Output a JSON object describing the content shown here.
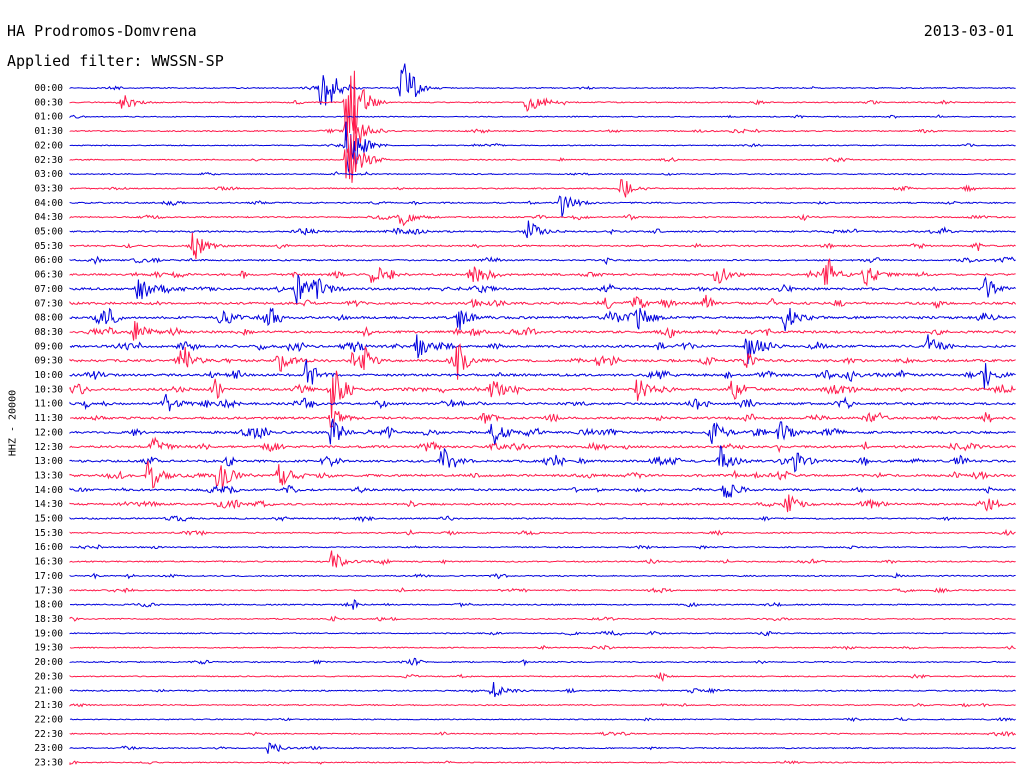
{
  "header": {
    "station": "HA Prodromos-Domvrena",
    "filter": "Applied filter: WWSSN-SP",
    "date": "2013-03-01"
  },
  "side_label": "HHZ - 20000",
  "colors": {
    "even_row": "#0000dd",
    "odd_row": "#ff1a4b"
  },
  "chart_data": {
    "type": "line",
    "title": "HA Prodromos-Domvrena",
    "subtitle": "Applied filter: WWSSN-SP",
    "ylabel": "HHZ - 20000",
    "grid": false,
    "rows": [
      "00:00",
      "00:30",
      "01:00",
      "01:30",
      "02:00",
      "02:30",
      "03:00",
      "03:30",
      "04:00",
      "04:30",
      "05:00",
      "05:30",
      "06:00",
      "06:30",
      "07:00",
      "07:30",
      "08:00",
      "08:30",
      "09:00",
      "09:30",
      "10:00",
      "10:30",
      "11:00",
      "11:30",
      "12:00",
      "12:30",
      "13:00",
      "13:30",
      "14:00",
      "14:30",
      "15:00",
      "15:30",
      "16:00",
      "16:30",
      "17:00",
      "17:30",
      "18:00",
      "18:30",
      "19:00",
      "19:30",
      "20:00",
      "20:30",
      "21:00",
      "21:30",
      "22:00",
      "22:30",
      "23:00",
      "23:30"
    ],
    "row_minutes": 30,
    "activity": [
      0.15,
      0.2,
      0.12,
      0.25,
      0.12,
      0.18,
      0.18,
      0.22,
      0.3,
      0.3,
      0.45,
      0.45,
      0.4,
      0.65,
      0.8,
      0.8,
      0.85,
      0.85,
      0.8,
      0.85,
      0.85,
      0.9,
      0.75,
      0.75,
      0.8,
      0.75,
      0.75,
      0.8,
      0.65,
      0.6,
      0.35,
      0.3,
      0.25,
      0.3,
      0.25,
      0.25,
      0.25,
      0.22,
      0.2,
      0.18,
      0.25,
      0.18,
      0.3,
      0.22,
      0.15,
      0.18,
      0.18,
      0.18
    ],
    "events": [
      {
        "row": 0,
        "minute": 8.0,
        "amp": 4
      },
      {
        "row": 0,
        "minute": 10.5,
        "amp": 3
      },
      {
        "row": 1,
        "minute": 1.6,
        "amp": 1
      },
      {
        "row": 1,
        "minute": 14.5,
        "amp": 1
      },
      {
        "row": 1,
        "minute": 8.8,
        "amp": 6
      },
      {
        "row": 3,
        "minute": 8.8,
        "amp": 5
      },
      {
        "row": 4,
        "minute": 8.8,
        "amp": 4
      },
      {
        "row": 5,
        "minute": 8.8,
        "amp": 3
      },
      {
        "row": 7,
        "minute": 17.5,
        "amp": 1
      },
      {
        "row": 8,
        "minute": 15.6,
        "amp": 1.2
      },
      {
        "row": 9,
        "minute": 10.5,
        "amp": 1
      },
      {
        "row": 10,
        "minute": 14.5,
        "amp": 1
      },
      {
        "row": 11,
        "minute": 3.9,
        "amp": 1.2
      },
      {
        "row": 13,
        "minute": 9.6,
        "amp": 1
      },
      {
        "row": 13,
        "minute": 12.7,
        "amp": 1
      },
      {
        "row": 13,
        "minute": 20.5,
        "amp": 1
      },
      {
        "row": 13,
        "minute": 24.0,
        "amp": 1.4
      },
      {
        "row": 13,
        "minute": 25.2,
        "amp": 1.2
      },
      {
        "row": 14,
        "minute": 2.2,
        "amp": 1.2
      },
      {
        "row": 14,
        "minute": 7.2,
        "amp": 1.2
      },
      {
        "row": 14,
        "minute": 7.8,
        "amp": 1
      },
      {
        "row": 14,
        "minute": 29.0,
        "amp": 1.2
      },
      {
        "row": 16,
        "minute": 4.8,
        "amp": 1
      },
      {
        "row": 16,
        "minute": 12.3,
        "amp": 1.1
      },
      {
        "row": 16,
        "minute": 18.0,
        "amp": 1
      },
      {
        "row": 16,
        "minute": 22.7,
        "amp": 1.3
      },
      {
        "row": 17,
        "minute": 2.0,
        "amp": 1
      },
      {
        "row": 18,
        "minute": 11.0,
        "amp": 1
      },
      {
        "row": 18,
        "minute": 21.5,
        "amp": 1.7
      },
      {
        "row": 18,
        "minute": 27.2,
        "amp": 1
      },
      {
        "row": 19,
        "minute": 3.5,
        "amp": 1.2
      },
      {
        "row": 19,
        "minute": 6.6,
        "amp": 1.1
      },
      {
        "row": 19,
        "minute": 9.0,
        "amp": 1
      },
      {
        "row": 19,
        "minute": 12.3,
        "amp": 1.2
      },
      {
        "row": 20,
        "minute": 7.5,
        "amp": 1
      },
      {
        "row": 20,
        "minute": 29.0,
        "amp": 1
      },
      {
        "row": 21,
        "minute": 8.3,
        "amp": 2.4
      },
      {
        "row": 21,
        "minute": 13.4,
        "amp": 1
      },
      {
        "row": 21,
        "minute": 18.0,
        "amp": 1
      },
      {
        "row": 21,
        "minute": 21.0,
        "amp": 1
      },
      {
        "row": 22,
        "minute": 3.0,
        "amp": 1
      },
      {
        "row": 23,
        "minute": 8.3,
        "amp": 1
      },
      {
        "row": 24,
        "minute": 8.3,
        "amp": 1.3
      },
      {
        "row": 24,
        "minute": 13.4,
        "amp": 1.2
      },
      {
        "row": 24,
        "minute": 20.3,
        "amp": 1.2
      },
      {
        "row": 24,
        "minute": 22.5,
        "amp": 1
      },
      {
        "row": 25,
        "minute": 2.6,
        "amp": 1
      },
      {
        "row": 26,
        "minute": 11.8,
        "amp": 1.2
      },
      {
        "row": 26,
        "minute": 20.6,
        "amp": 1.3
      },
      {
        "row": 26,
        "minute": 23.0,
        "amp": 1.1
      },
      {
        "row": 27,
        "minute": 2.5,
        "amp": 1.5
      },
      {
        "row": 27,
        "minute": 4.7,
        "amp": 1.6
      },
      {
        "row": 27,
        "minute": 6.6,
        "amp": 1.2
      },
      {
        "row": 28,
        "minute": 20.8,
        "amp": 1.1
      },
      {
        "row": 29,
        "minute": 22.7,
        "amp": 1
      },
      {
        "row": 33,
        "minute": 8.3,
        "amp": 1
      },
      {
        "row": 42,
        "minute": 13.4,
        "amp": 0.8
      },
      {
        "row": 46,
        "minute": 6.3,
        "amp": 0.7
      }
    ]
  }
}
